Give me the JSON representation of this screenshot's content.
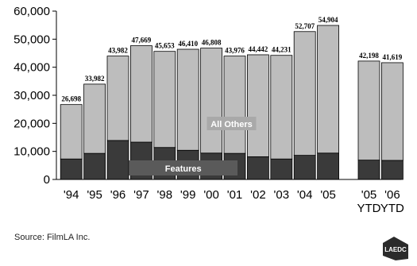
{
  "chart_data": {
    "type": "bar",
    "stacked": true,
    "categories": [
      "'94",
      "'95",
      "'96",
      "'97",
      "'98",
      "'99",
      "'00",
      "'01",
      "'02",
      "'03",
      "'04",
      "'05",
      "'05\nYTD",
      "'06\nYTD"
    ],
    "series": [
      {
        "name": "Features",
        "color": "#3a3a3a",
        "values": [
          7300,
          9300,
          13900,
          13300,
          11400,
          10400,
          9400,
          9300,
          8100,
          7300,
          8600,
          9400,
          6900,
          6800
        ]
      },
      {
        "name": "All Others",
        "color": "#bdbdbd",
        "values": [
          19398,
          24682,
          30082,
          34369,
          34253,
          36010,
          37408,
          34676,
          36342,
          36931,
          44107,
          45504,
          35298,
          34819
        ]
      }
    ],
    "totals": [
      "26,698",
      "33,982",
      "43,982",
      "47,669",
      "45,653",
      "46,410",
      "46,808",
      "43,976",
      "44,442",
      "44,231",
      "52,707",
      "54,904",
      "42,198",
      "41,619"
    ],
    "ylim": [
      0,
      60000
    ],
    "yticks": [
      "0",
      "10,000",
      "20,000",
      "30,000",
      "40,000",
      "50,000",
      "60,000"
    ],
    "title": "",
    "xlabel": "",
    "ylabel": "",
    "grid": false
  },
  "source": "Source:  FilmLA Inc.",
  "logo_text": "LAEDC"
}
